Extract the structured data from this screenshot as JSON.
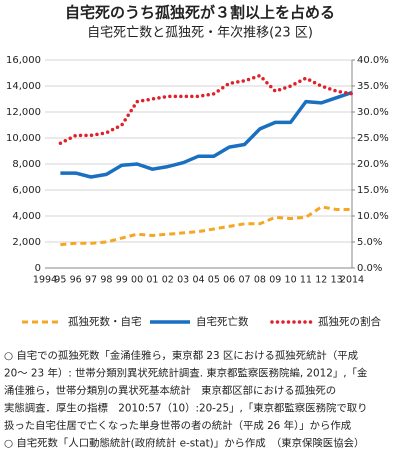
{
  "chart_data": {
    "type": "line",
    "title": "自宅死のうち孤独死が３割以上を占める",
    "subtitle": "自宅死亡数と孤独死・年次推移(23 区)",
    "categories": [
      "1994",
      "95",
      "96",
      "97",
      "98",
      "99",
      "00",
      "01",
      "02",
      "03",
      "04",
      "05",
      "06",
      "07",
      "08",
      "09",
      "10",
      "11",
      "12",
      "13",
      "2014"
    ],
    "ylim": [
      0,
      16000
    ],
    "yticks": [
      0,
      {
        "value": 2000,
        "label": "2,000"
      },
      {
        "value": 4000,
        "label": "4,000"
      },
      {
        "value": 6000,
        "label": "6,000"
      },
      {
        "value": 8000,
        "label": "8,000"
      },
      {
        "value": 10000,
        "label": "10,000"
      },
      {
        "value": 12000,
        "label": "12,000"
      },
      {
        "value": 14000,
        "label": "14,000"
      },
      {
        "value": 16000,
        "label": "16,000"
      }
    ],
    "y2lim": [
      0,
      40
    ],
    "y2ticks": [
      {
        "value": 0,
        "label": "0.0%"
      },
      {
        "value": 5,
        "label": "5.0%"
      },
      {
        "value": 10,
        "label": "10.0%"
      },
      {
        "value": 15,
        "label": "15.0%"
      },
      {
        "value": 20,
        "label": "20.0%"
      },
      {
        "value": 25,
        "label": "25.0%"
      },
      {
        "value": 30,
        "label": "30.0%"
      },
      {
        "value": 35,
        "label": "35.0%"
      },
      {
        "value": 40,
        "label": "40.0%"
      }
    ],
    "grid": true,
    "series": [
      {
        "name": "孤独死数・自宅",
        "color": "#f5a623",
        "style": "dashed",
        "values": [
          null,
          1800,
          1900,
          1900,
          2000,
          2300,
          2600,
          2500,
          2600,
          2700,
          2800,
          3000,
          3200,
          3400,
          3400,
          3900,
          3800,
          3900,
          4700,
          4500,
          4500
        ]
      },
      {
        "name": "自宅死亡数",
        "color": "#1a6fc0",
        "style": "solid",
        "values": [
          null,
          7300,
          7300,
          7000,
          7200,
          7900,
          8000,
          7600,
          7800,
          8100,
          8600,
          8600,
          9300,
          9500,
          10700,
          11200,
          11200,
          12800,
          12700,
          13100,
          13500
        ]
      },
      {
        "name": "孤独死の割合",
        "color": "#e0202a",
        "style": "dotted",
        "axis": "y2",
        "values": [
          null,
          24,
          25.5,
          25.5,
          26,
          27.5,
          32,
          32.5,
          33,
          33,
          33,
          33.5,
          35.5,
          36,
          37,
          34,
          35,
          36.5,
          35,
          34,
          33.5
        ]
      }
    ]
  },
  "notes": [
    "○ 自宅での孤独死数「金涌佳雅ら，東京都 23 区における孤独死統計（平成",
    "20～ 23 年）: 世帯分類別異状死統計調査. 東京都監察医務院編, 2012」,「金",
    "涌佳雅ら，世帯分類別の異状死基本統計　東京都区部における孤独死の",
    "実態調査．厚生の指標　2010:57（10）:20-25」,「東京都監察医務院で取り",
    "扱った自宅住居で亡くなった単身世帯の者の統計（平成 26 年）」から作成",
    "○ 自宅死数「人口動態統計(政府統計 e-stat)」から作成　（東京保険医協会）"
  ]
}
